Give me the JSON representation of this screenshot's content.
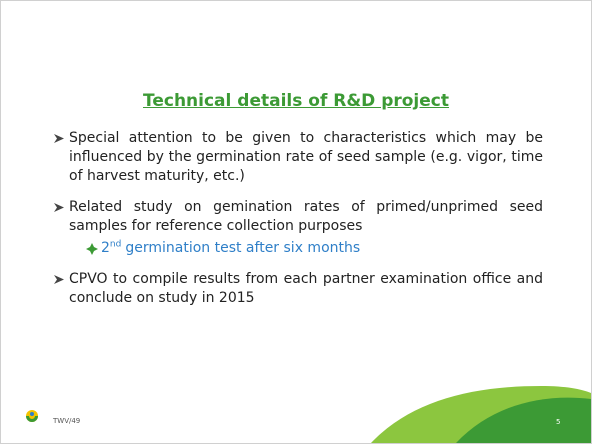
{
  "title": "Technical details of R&D project",
  "bullets": [
    {
      "text": "Special attention to be given to characteristics which may be influenced by the germination rate of seed sample (e.g. vigor, time of harvest maturity, etc.)"
    },
    {
      "text": "Related study on gemination rates of primed/unprimed seed samples for reference collection purposes",
      "sub_bullet": {
        "number": "2",
        "superscript": "nd",
        "text": "germination test after six months"
      }
    },
    {
      "text": "CPVO to compile results from each partner examination office and conclude on study in 2015"
    }
  ],
  "footer": "TWV/49",
  "page_number": "5"
}
